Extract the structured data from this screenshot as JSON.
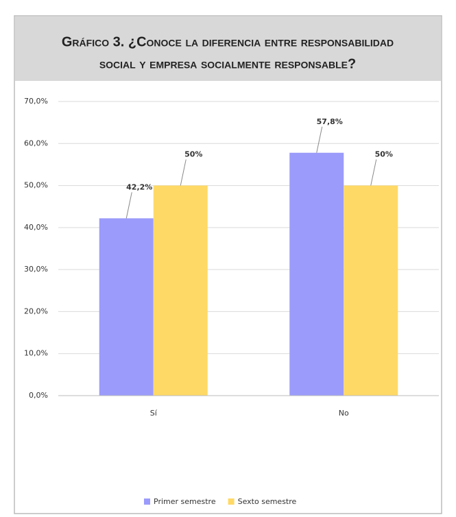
{
  "chart_data": {
    "type": "bar",
    "title_line1": "Gráfico 3. ¿Conoce la diferencia entre responsabilidad",
    "title_line2": "social y empresa socialmente responsable?",
    "categories": [
      "Sí",
      "No"
    ],
    "series": [
      {
        "name": "Primer semestre",
        "color": "#9b9bfb",
        "values": [
          42.2,
          57.8
        ],
        "value_labels": [
          "42,2%",
          "57,8%"
        ]
      },
      {
        "name": "Sexto semestre",
        "color": "#ffd966",
        "values": [
          50,
          50
        ],
        "value_labels": [
          "50%",
          "50%"
        ]
      }
    ],
    "ylim": [
      0,
      70
    ],
    "yticks": [
      {
        "value": 0,
        "label": "0,0%"
      },
      {
        "value": 10,
        "label": "10,0%"
      },
      {
        "value": 20,
        "label": "20,0%"
      },
      {
        "value": 30,
        "label": "30,0%"
      },
      {
        "value": 40,
        "label": "40,0%"
      },
      {
        "value": 50,
        "label": "50,0%"
      },
      {
        "value": 60,
        "label": "60,0%"
      },
      {
        "value": 70,
        "label": "70,0%"
      }
    ],
    "grid": true,
    "legend": "bottom"
  }
}
